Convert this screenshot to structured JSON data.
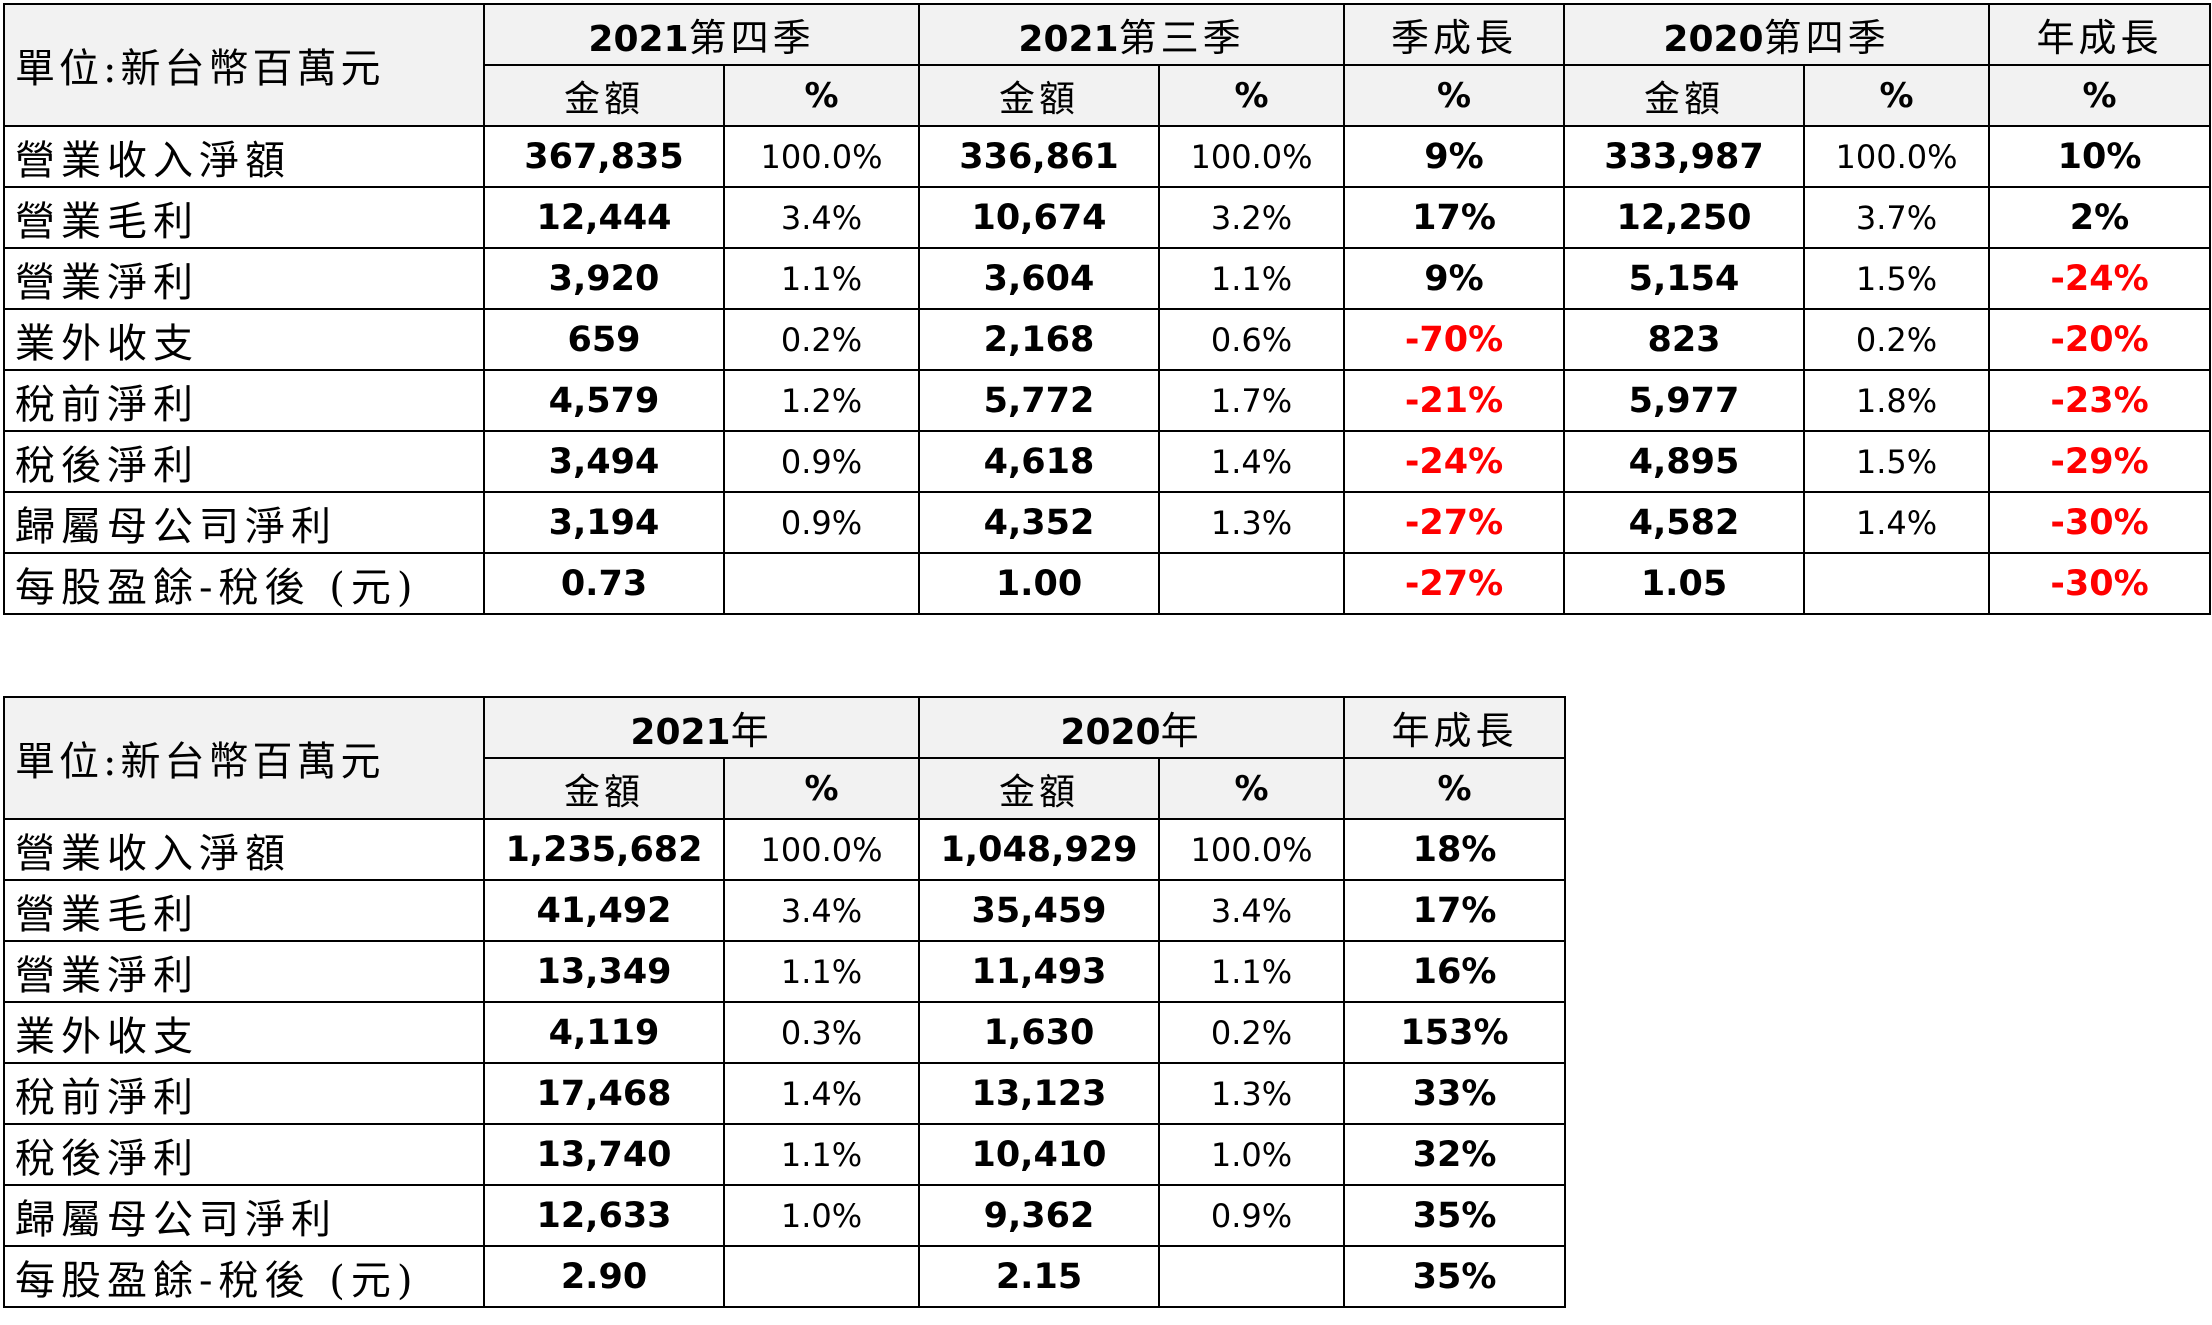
{
  "unit_label": "單位:新台幣百萬元",
  "sub_amount": "金額",
  "sub_pct": "%",
  "quarterly": {
    "periods": {
      "q4_2021": {
        "year": "2021",
        "suffix": "第四季"
      },
      "q3_2021": {
        "year": "2021",
        "suffix": "第三季"
      },
      "qoq": "季成長",
      "q4_2020": {
        "year": "2020",
        "suffix": "第四季"
      },
      "yoy": "年成長"
    },
    "rows": [
      {
        "label": "營業收入淨額",
        "a1": "367,835",
        "p1": "100.0%",
        "a2": "336,861",
        "p2": "100.0%",
        "g1": "9%",
        "a3": "333,987",
        "p3": "100.0%",
        "g2": "10%"
      },
      {
        "label": "營業毛利",
        "a1": "12,444",
        "p1": "3.4%",
        "a2": "10,674",
        "p2": "3.2%",
        "g1": "17%",
        "a3": "12,250",
        "p3": "3.7%",
        "g2": "2%"
      },
      {
        "label": "營業淨利",
        "a1": "3,920",
        "p1": "1.1%",
        "a2": "3,604",
        "p2": "1.1%",
        "g1": "9%",
        "a3": "5,154",
        "p3": "1.5%",
        "g2": "-24%"
      },
      {
        "label": "業外收支",
        "a1": "659",
        "p1": "0.2%",
        "a2": "2,168",
        "p2": "0.6%",
        "g1": "-70%",
        "a3": "823",
        "p3": "0.2%",
        "g2": "-20%"
      },
      {
        "label": "稅前淨利",
        "a1": "4,579",
        "p1": "1.2%",
        "a2": "5,772",
        "p2": "1.7%",
        "g1": "-21%",
        "a3": "5,977",
        "p3": "1.8%",
        "g2": "-23%"
      },
      {
        "label": "稅後淨利",
        "a1": "3,494",
        "p1": "0.9%",
        "a2": "4,618",
        "p2": "1.4%",
        "g1": "-24%",
        "a3": "4,895",
        "p3": "1.5%",
        "g2": "-29%"
      },
      {
        "label": "歸屬母公司淨利",
        "a1": "3,194",
        "p1": "0.9%",
        "a2": "4,352",
        "p2": "1.3%",
        "g1": "-27%",
        "a3": "4,582",
        "p3": "1.4%",
        "g2": "-30%"
      },
      {
        "label": "每股盈餘-稅後 (元)",
        "a1": "0.73",
        "p1": "",
        "a2": "1.00",
        "p2": "",
        "g1": "-27%",
        "a3": "1.05",
        "p3": "",
        "g2": "-30%"
      }
    ]
  },
  "annual": {
    "periods": {
      "y2021": {
        "year": "2021",
        "suffix": "年"
      },
      "y2020": {
        "year": "2020",
        "suffix": "年"
      },
      "yoy": "年成長"
    },
    "rows": [
      {
        "label": "營業收入淨額",
        "a1": "1,235,682",
        "p1": "100.0%",
        "a2": "1,048,929",
        "p2": "100.0%",
        "g1": "18%"
      },
      {
        "label": "營業毛利",
        "a1": "41,492",
        "p1": "3.4%",
        "a2": "35,459",
        "p2": "3.4%",
        "g1": "17%"
      },
      {
        "label": "營業淨利",
        "a1": "13,349",
        "p1": "1.1%",
        "a2": "11,493",
        "p2": "1.1%",
        "g1": "16%"
      },
      {
        "label": "業外收支",
        "a1": "4,119",
        "p1": "0.3%",
        "a2": "1,630",
        "p2": "0.2%",
        "g1": "153%"
      },
      {
        "label": "稅前淨利",
        "a1": "17,468",
        "p1": "1.4%",
        "a2": "13,123",
        "p2": "1.3%",
        "g1": "33%"
      },
      {
        "label": "稅後淨利",
        "a1": "13,740",
        "p1": "1.1%",
        "a2": "10,410",
        "p2": "1.0%",
        "g1": "32%"
      },
      {
        "label": "歸屬母公司淨利",
        "a1": "12,633",
        "p1": "1.0%",
        "a2": "9,362",
        "p2": "0.9%",
        "g1": "35%"
      },
      {
        "label": "每股盈餘-稅後 (元)",
        "a1": "2.90",
        "p1": "",
        "a2": "2.15",
        "p2": "",
        "g1": "35%"
      }
    ]
  }
}
